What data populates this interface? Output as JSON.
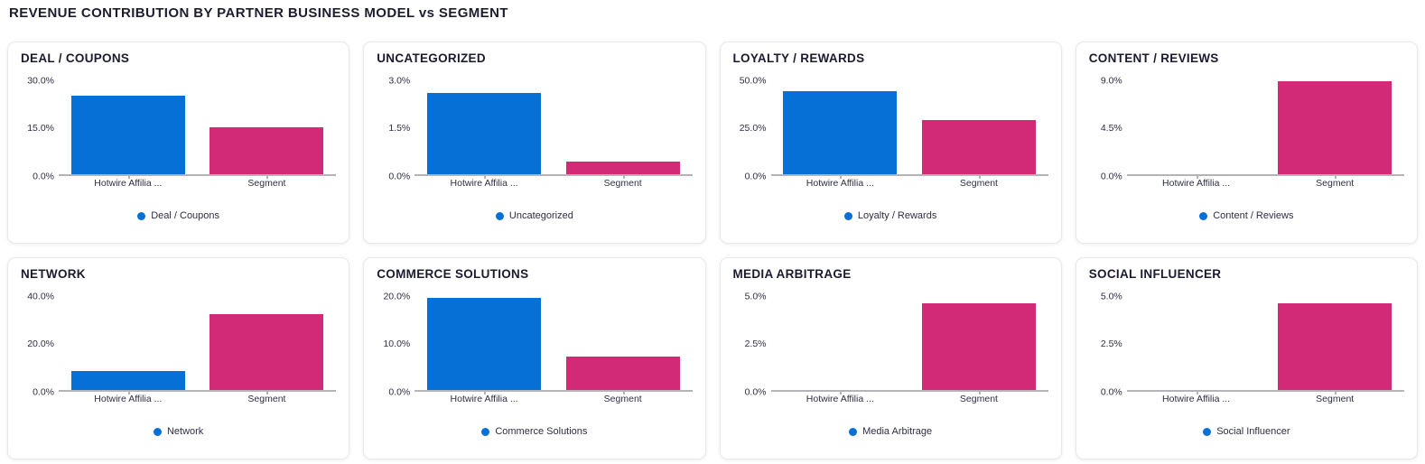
{
  "page_title": "REVENUE CONTRIBUTION BY PARTNER BUSINESS MODEL vs SEGMENT",
  "colors": {
    "bar_primary": "#0670D6",
    "bar_secondary": "#D32A78",
    "legend_dot": "#0670D6",
    "axis_line": "#B4B4B8",
    "title_text": "#1B1B2F"
  },
  "chart_data": [
    {
      "type": "bar",
      "title": "DEAL / COUPONS",
      "legend": "Deal / Coupons",
      "categories": [
        "Hotwire Affilia ...",
        "Segment"
      ],
      "values": [
        25.0,
        15.1
      ],
      "ylim": [
        0,
        30
      ],
      "y_ticks": [
        "30.0%",
        "15.0%",
        "0.0%"
      ],
      "ylabel": "",
      "xlabel": "",
      "grid": false,
      "legend_position": "bottom"
    },
    {
      "type": "bar",
      "title": "UNCATEGORIZED",
      "legend": "Uncategorized",
      "categories": [
        "Hotwire Affilia ...",
        "Segment"
      ],
      "values": [
        2.6,
        0.4
      ],
      "ylim": [
        0,
        3
      ],
      "y_ticks": [
        "3.0%",
        "1.5%",
        "0.0%"
      ],
      "ylabel": "",
      "xlabel": "",
      "grid": false,
      "legend_position": "bottom"
    },
    {
      "type": "bar",
      "title": "LOYALTY / REWARDS",
      "legend": "Loyalty / Rewards",
      "categories": [
        "Hotwire Affilia ...",
        "Segment"
      ],
      "values": [
        44.3,
        29.0
      ],
      "ylim": [
        0,
        50
      ],
      "y_ticks": [
        "50.0%",
        "25.0%",
        "0.0%"
      ],
      "ylabel": "",
      "xlabel": "",
      "grid": false,
      "legend_position": "bottom"
    },
    {
      "type": "bar",
      "title": "CONTENT / REVIEWS",
      "legend": "Content / Reviews",
      "categories": [
        "Hotwire Affilia ...",
        "Segment"
      ],
      "values": [
        0,
        8.9
      ],
      "ylim": [
        0,
        9
      ],
      "y_ticks": [
        "9.0%",
        "4.5%",
        "0.0%"
      ],
      "ylabel": "",
      "xlabel": "",
      "grid": false,
      "legend_position": "bottom"
    },
    {
      "type": "bar",
      "title": "NETWORK",
      "legend": "Network",
      "categories": [
        "Hotwire Affilia ...",
        "Segment"
      ],
      "values": [
        8.1,
        32.4
      ],
      "ylim": [
        0,
        40
      ],
      "y_ticks": [
        "40.0%",
        "20.0%",
        "0.0%"
      ],
      "ylabel": "",
      "xlabel": "",
      "grid": false,
      "legend_position": "bottom"
    },
    {
      "type": "bar",
      "title": "COMMERCE SOLUTIONS",
      "legend": "Commerce Solutions",
      "categories": [
        "Hotwire Affilia ...",
        "Segment"
      ],
      "values": [
        19.7,
        7.1
      ],
      "ylim": [
        0,
        20
      ],
      "y_ticks": [
        "20.0%",
        "10.0%",
        "0.0%"
      ],
      "ylabel": "",
      "xlabel": "",
      "grid": false,
      "legend_position": "bottom"
    },
    {
      "type": "bar",
      "title": "MEDIA ARBITRAGE",
      "legend": "Media Arbitrage",
      "categories": [
        "Hotwire Affilia ...",
        "Segment"
      ],
      "values": [
        0,
        4.6
      ],
      "ylim": [
        0,
        5
      ],
      "y_ticks": [
        "5.0%",
        "2.5%",
        "0.0%"
      ],
      "ylabel": "",
      "xlabel": "",
      "grid": false,
      "legend_position": "bottom"
    },
    {
      "type": "bar",
      "title": "SOCIAL INFLUENCER",
      "legend": "Social Influencer",
      "categories": [
        "Hotwire Affilia ...",
        "Segment"
      ],
      "values": [
        0,
        4.6
      ],
      "ylim": [
        0,
        5
      ],
      "y_ticks": [
        "5.0%",
        "2.5%",
        "0.0%"
      ],
      "ylabel": "",
      "xlabel": "",
      "grid": false,
      "legend_position": "bottom"
    }
  ]
}
